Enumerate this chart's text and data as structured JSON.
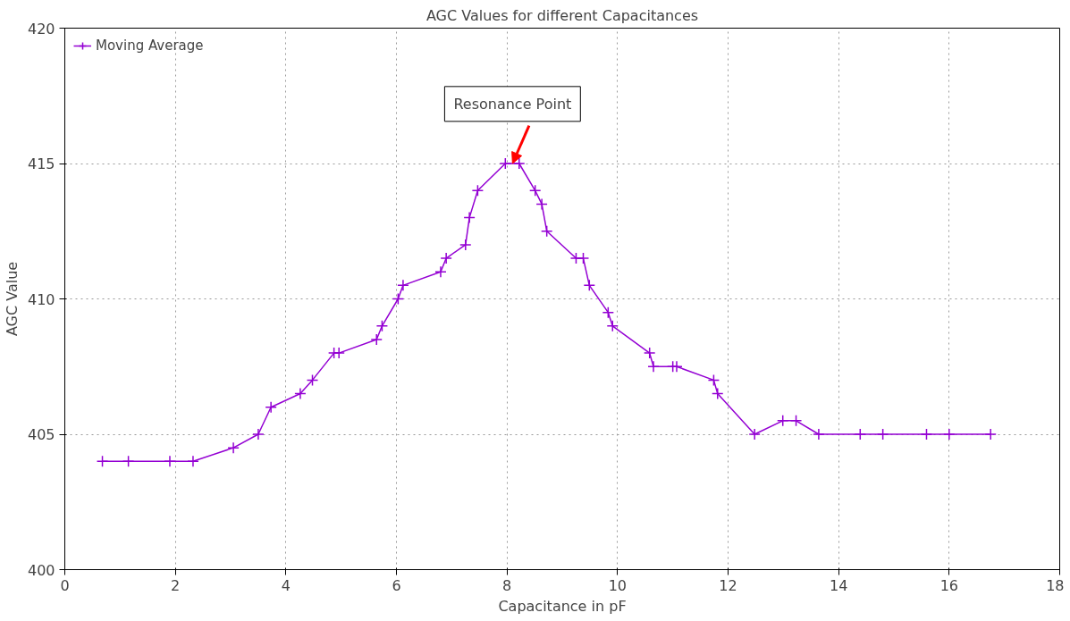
{
  "chart_data": {
    "type": "line",
    "title": "AGC Values for different Capacitances",
    "xlabel": "Capacitance in pF",
    "ylabel": "AGC Value",
    "x": [
      0.68,
      1.15,
      1.9,
      2.32,
      3.05,
      3.5,
      3.73,
      4.26,
      4.48,
      4.87,
      4.96,
      5.64,
      5.74,
      6.03,
      6.12,
      6.8,
      6.9,
      7.25,
      7.32,
      7.47,
      7.97,
      8.22,
      8.51,
      8.63,
      8.72,
      9.25,
      9.38,
      9.49,
      9.83,
      9.91,
      10.58,
      10.65,
      11.0,
      11.07,
      11.74,
      11.81,
      12.48,
      12.99,
      13.23,
      13.64,
      14.39,
      14.8,
      15.59,
      16.0,
      16.75
    ],
    "series": [
      {
        "name": "Moving Average",
        "color": "#9400d3",
        "values": [
          404,
          404,
          404,
          404,
          404.5,
          405,
          406,
          406.5,
          407,
          408,
          408,
          408.5,
          409,
          410,
          410.5,
          411,
          411.5,
          412,
          413,
          414,
          415,
          415,
          414,
          413.5,
          412.5,
          411.5,
          411.5,
          410.5,
          409.5,
          409,
          408,
          407.5,
          407.5,
          407.5,
          407,
          406.5,
          405,
          405.5,
          405.5,
          405,
          405,
          405,
          405,
          405,
          405
        ]
      }
    ],
    "annotations": [
      {
        "text": "Resonance Point",
        "x": 8.1,
        "y": 415
      }
    ],
    "xlim": [
      0,
      18
    ],
    "xticks": [
      0,
      2,
      4,
      6,
      8,
      10,
      12,
      14,
      16,
      18
    ],
    "ylim": [
      400,
      420
    ],
    "yticks": [
      400,
      405,
      410,
      415,
      420
    ],
    "grid": true,
    "legend": "top left",
    "marker": "cross",
    "line_style": "solid"
  }
}
